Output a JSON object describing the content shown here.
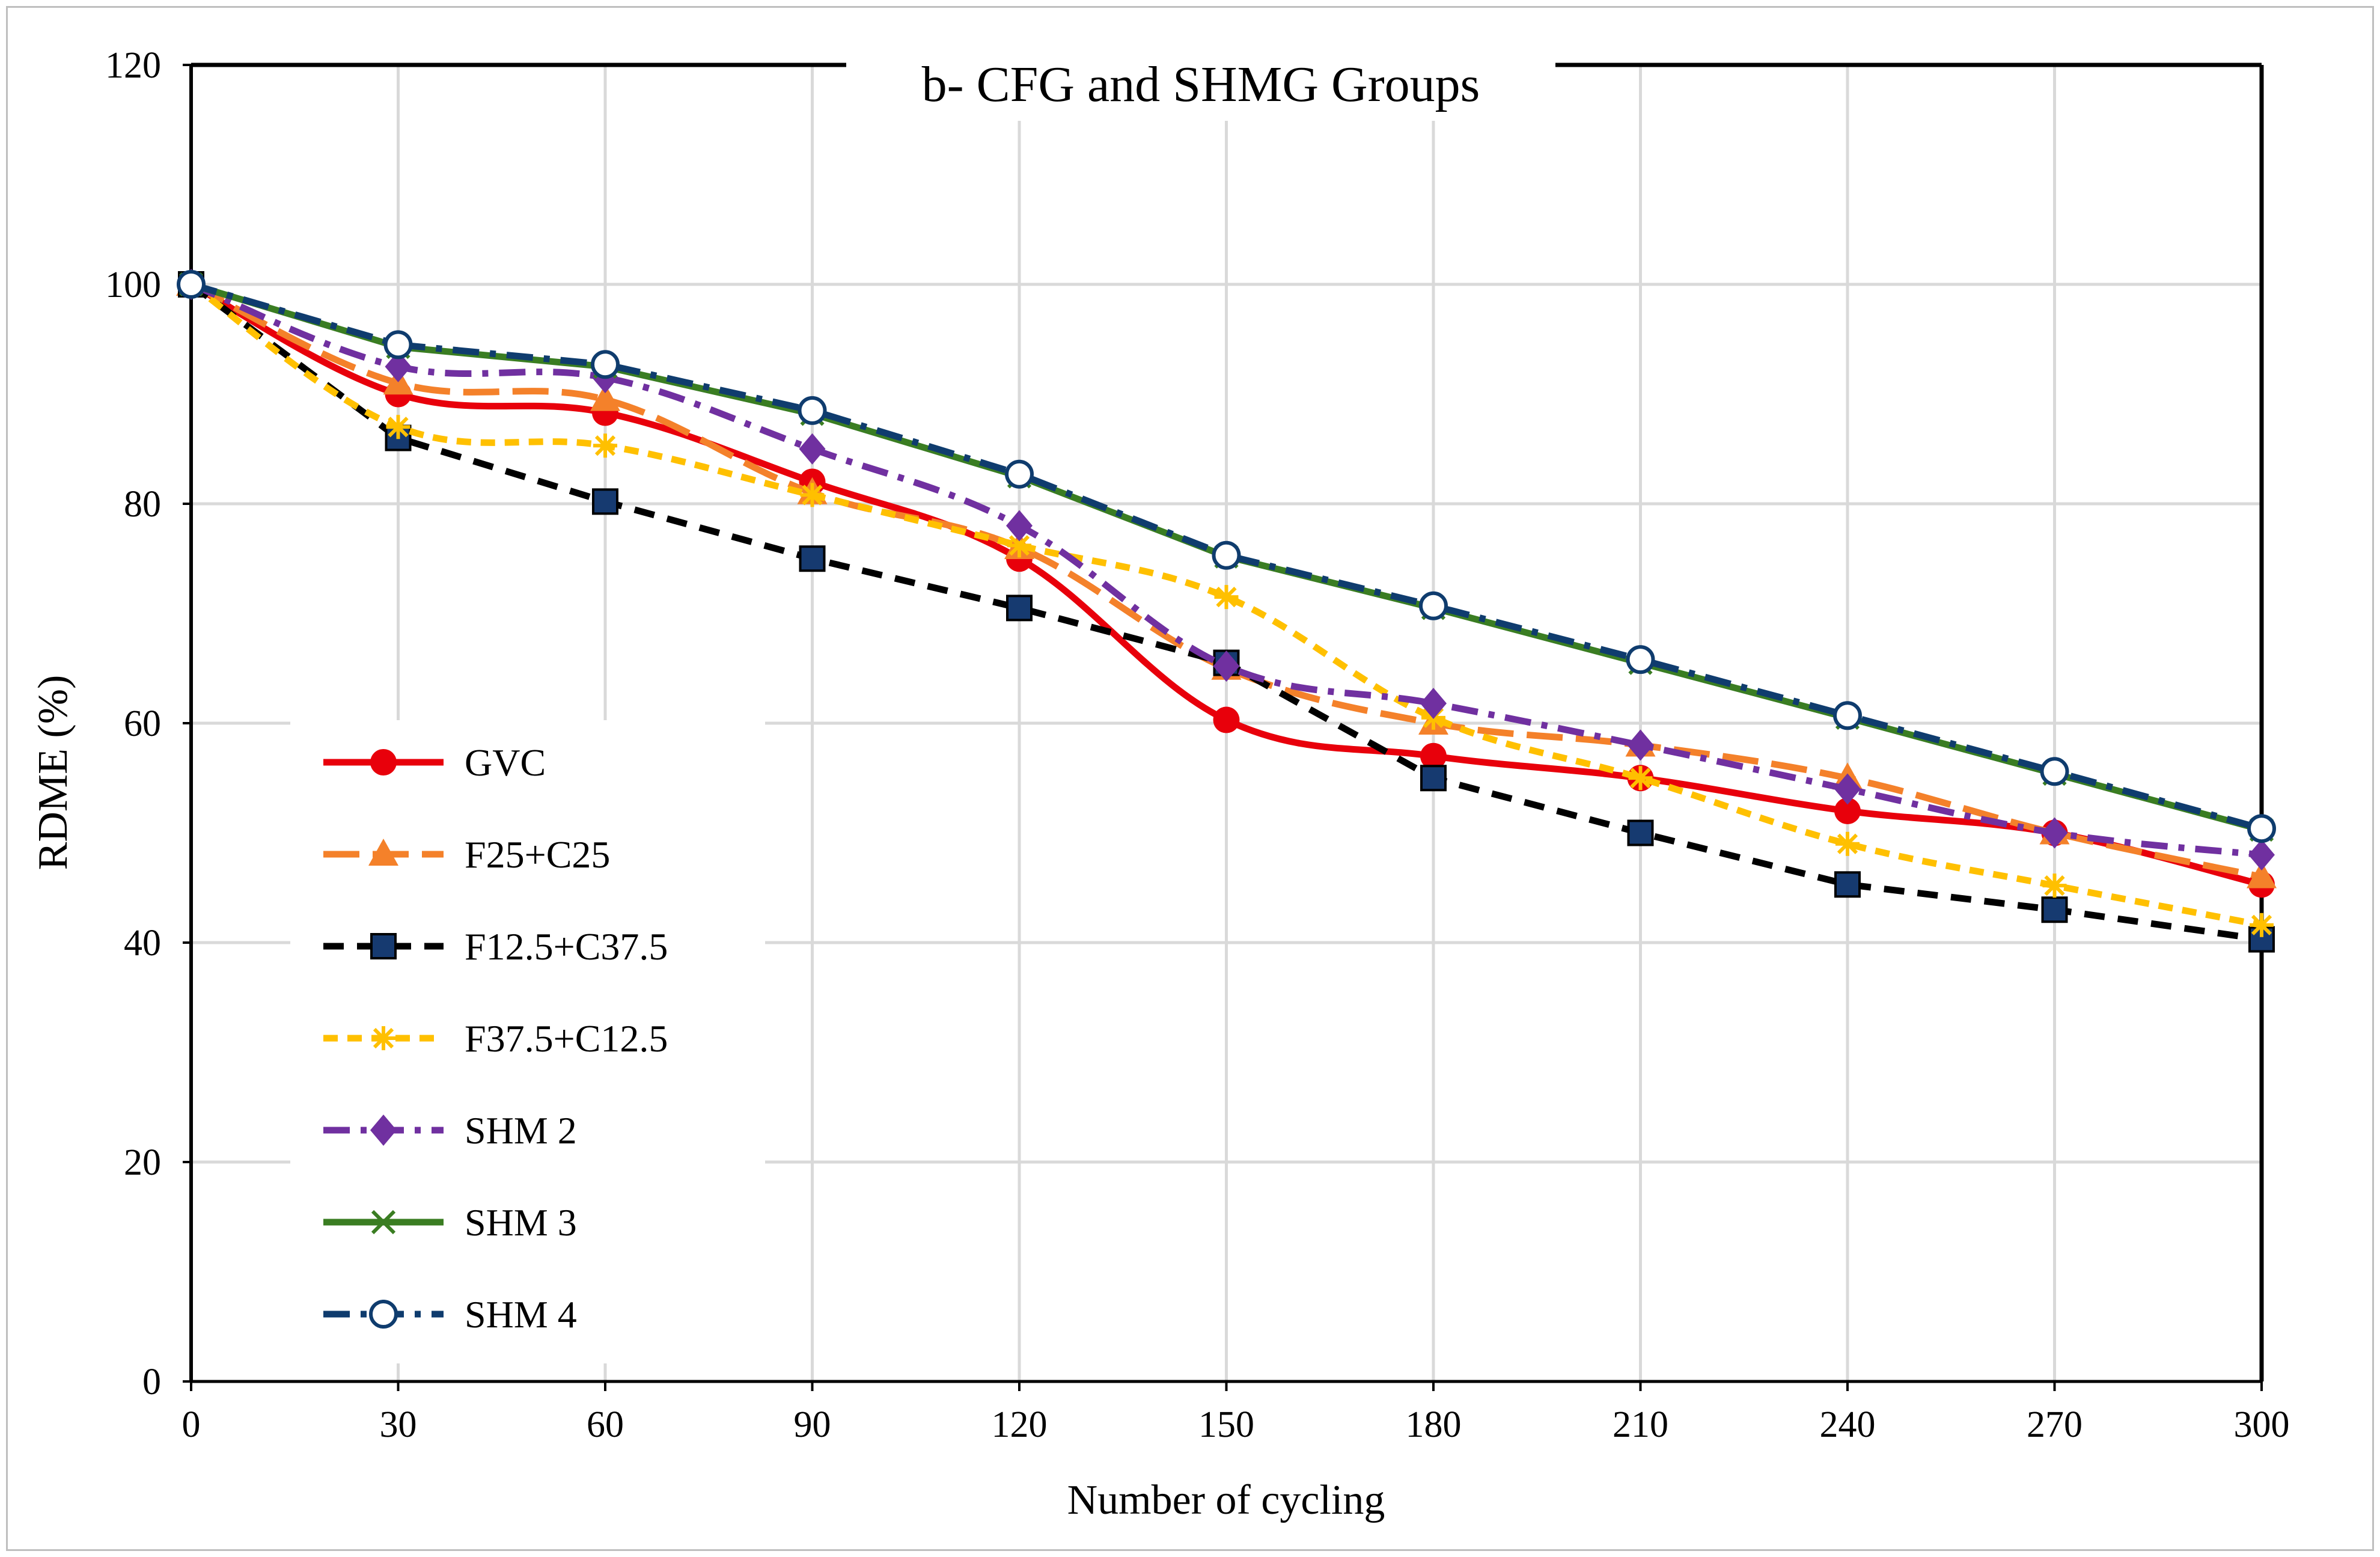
{
  "chart_data": {
    "type": "line",
    "title": "b- CFG and SHMG Groups",
    "xlabel": "Number of cycling",
    "ylabel": "RDME (%)",
    "xlim": [
      0,
      300
    ],
    "ylim": [
      0,
      120
    ],
    "x_ticks": [
      0,
      30,
      60,
      90,
      120,
      150,
      180,
      210,
      240,
      270,
      300
    ],
    "y_ticks": [
      0,
      20,
      40,
      60,
      80,
      100,
      120
    ],
    "grid": true,
    "legend_position": "left",
    "x": [
      0,
      30,
      60,
      90,
      120,
      150,
      180,
      210,
      240,
      270,
      300
    ],
    "series": [
      {
        "name": "GVC",
        "color": "#e8000b",
        "dash": "solid",
        "marker": "circle",
        "smooth": true,
        "values": [
          100,
          90,
          88.3,
          82,
          75,
          60.3,
          57,
          55,
          52,
          50,
          45.3
        ]
      },
      {
        "name": "F25+C25",
        "color": "#f4812a",
        "dash": "longdash",
        "marker": "triangle",
        "smooth": true,
        "values": [
          100,
          91,
          89.5,
          81,
          76,
          65,
          60,
          58,
          55,
          50,
          46
        ]
      },
      {
        "name": "F12.5+C37.5",
        "color": "#000000",
        "dash": "dash",
        "marker": "square",
        "smooth": false,
        "values": [
          100,
          86,
          80.2,
          75,
          70.5,
          65.5,
          55,
          50,
          45.3,
          43,
          40.3
        ]
      },
      {
        "name": "F37.5+C12.5",
        "color": "#ffc000",
        "dash": "shortdash",
        "marker": "asterisk",
        "smooth": true,
        "values": [
          100,
          87,
          85.3,
          80.8,
          76.2,
          71.5,
          60.5,
          55,
          49,
          45.2,
          41.6
        ]
      },
      {
        "name": "SHM 2",
        "color": "#7030a0",
        "dash": "dashdot",
        "marker": "diamond",
        "smooth": true,
        "values": [
          100,
          92.5,
          91.5,
          85,
          78,
          65.2,
          61.8,
          58,
          54,
          50,
          48
        ]
      },
      {
        "name": "SHM 3",
        "color": "#3a7d22",
        "dash": "solid",
        "marker": "x",
        "smooth": false,
        "values": [
          100,
          94.3,
          92.5,
          88.2,
          82.5,
          75.2,
          70.5,
          65.5,
          60.5,
          55.4,
          50.3
        ]
      },
      {
        "name": "SHM 4",
        "color": "#0f3c6e",
        "dash": "dashdot",
        "marker": "opencircle",
        "smooth": false,
        "values": [
          100,
          94.5,
          92.7,
          88.5,
          82.7,
          75.3,
          70.7,
          65.8,
          60.7,
          55.6,
          50.4
        ]
      }
    ]
  }
}
